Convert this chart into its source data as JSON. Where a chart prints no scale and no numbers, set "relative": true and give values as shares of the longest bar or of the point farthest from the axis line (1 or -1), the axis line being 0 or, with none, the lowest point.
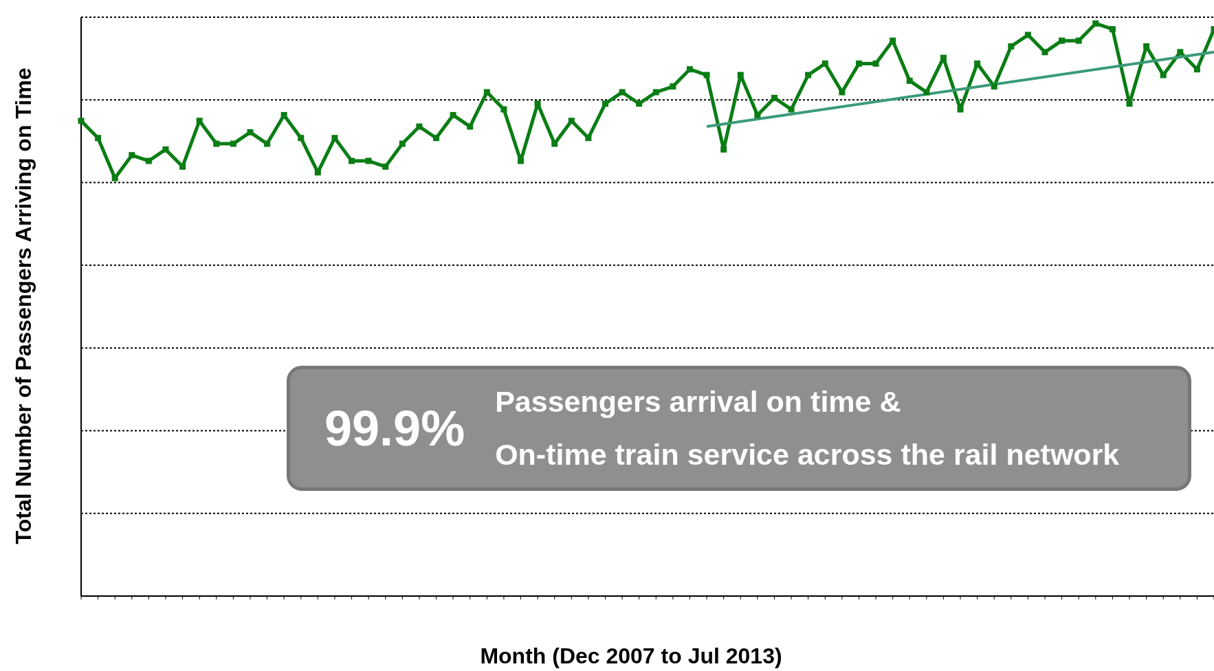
{
  "chart_data": {
    "type": "line",
    "relative": true,
    "xlabel": "Month (Dec 2007 to Jul 2013)",
    "ylabel": "Total Number of Passengers Arriving on Time",
    "grid": "y",
    "marker": "square",
    "line_style": "solid",
    "categories": [
      null,
      null,
      null,
      null,
      null,
      null,
      null,
      null,
      null,
      null,
      null,
      null,
      null,
      null,
      null,
      null,
      null,
      null,
      null,
      null,
      null,
      null,
      null,
      null,
      null,
      null,
      null,
      null,
      null,
      null,
      null,
      null,
      null,
      null,
      null,
      null,
      null,
      null,
      null,
      null,
      null,
      null,
      null,
      null,
      null,
      null,
      null,
      null,
      null,
      null,
      null,
      null,
      null,
      null,
      null,
      null,
      null,
      null,
      null,
      null,
      null,
      null,
      null,
      null,
      null,
      null,
      null,
      null
    ],
    "series": [
      {
        "color": "#0a7d14",
        "values": [
          0.83,
          0.8,
          0.73,
          0.77,
          0.76,
          0.78,
          0.75,
          0.83,
          0.79,
          0.79,
          0.81,
          0.79,
          0.84,
          0.8,
          0.74,
          0.8,
          0.76,
          0.76,
          0.75,
          0.79,
          0.82,
          0.8,
          0.84,
          0.82,
          0.88,
          0.85,
          0.76,
          0.86,
          0.79,
          0.83,
          0.8,
          0.86,
          0.88,
          0.86,
          0.88,
          0.89,
          0.92,
          0.91,
          0.78,
          0.91,
          0.84,
          0.87,
          0.85,
          0.91,
          0.93,
          0.88,
          0.93,
          0.93,
          0.97,
          0.9,
          0.88,
          0.94,
          0.85,
          0.93,
          0.89,
          0.96,
          0.98,
          0.95,
          0.97,
          0.97,
          1,
          0.99,
          0.86,
          0.96,
          0.91,
          0.95,
          0.92,
          0.99
        ]
      },
      {
        "type": "line",
        "color": "#3a9a78",
        "marker": "none",
        "values": [
          null,
          null,
          null,
          null,
          null,
          null,
          null,
          null,
          null,
          null,
          null,
          null,
          null,
          null,
          null,
          null,
          null,
          null,
          null,
          null,
          null,
          null,
          null,
          null,
          null,
          null,
          null,
          null,
          null,
          null,
          null,
          null,
          null,
          null,
          null,
          null,
          null,
          0.82,
          null,
          null,
          null,
          null,
          null,
          null,
          null,
          null,
          null,
          null,
          null,
          null,
          null,
          null,
          null,
          null,
          null,
          null,
          null,
          null,
          null,
          null,
          null,
          null,
          null,
          null,
          null,
          null,
          null,
          0.95
        ]
      }
    ],
    "annotations": [
      "99.9%",
      "Passengers arrival on time &",
      "On-time train service across the rail network"
    ]
  }
}
